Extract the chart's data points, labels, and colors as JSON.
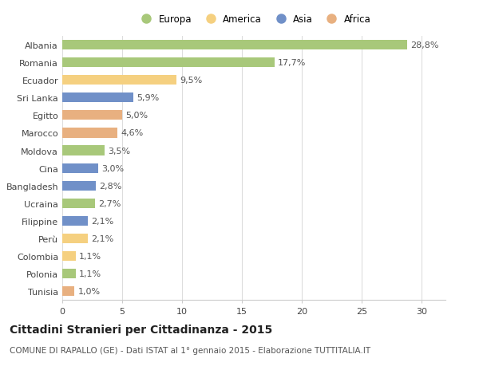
{
  "categories": [
    "Albania",
    "Romania",
    "Ecuador",
    "Sri Lanka",
    "Egitto",
    "Marocco",
    "Moldova",
    "Cina",
    "Bangladesh",
    "Ucraina",
    "Filippine",
    "Perù",
    "Colombia",
    "Polonia",
    "Tunisia"
  ],
  "values": [
    28.8,
    17.7,
    9.5,
    5.9,
    5.0,
    4.6,
    3.5,
    3.0,
    2.8,
    2.7,
    2.1,
    2.1,
    1.1,
    1.1,
    1.0
  ],
  "labels": [
    "28,8%",
    "17,7%",
    "9,5%",
    "5,9%",
    "5,0%",
    "4,6%",
    "3,5%",
    "3,0%",
    "2,8%",
    "2,7%",
    "2,1%",
    "2,1%",
    "1,1%",
    "1,1%",
    "1,0%"
  ],
  "continents": [
    "Europa",
    "Europa",
    "America",
    "Asia",
    "Africa",
    "Africa",
    "Europa",
    "Asia",
    "Asia",
    "Europa",
    "Asia",
    "America",
    "America",
    "Europa",
    "Africa"
  ],
  "colors": {
    "Europa": "#a8c87a",
    "America": "#f5d080",
    "Asia": "#7090c8",
    "Africa": "#e8b080"
  },
  "legend_order": [
    "Europa",
    "America",
    "Asia",
    "Africa"
  ],
  "title": "Cittadini Stranieri per Cittadinanza - 2015",
  "subtitle": "COMUNE DI RAPALLO (GE) - Dati ISTAT al 1° gennaio 2015 - Elaborazione TUTTITALIA.IT",
  "xlim": [
    0,
    32
  ],
  "xticks": [
    0,
    5,
    10,
    15,
    20,
    25,
    30
  ],
  "background_color": "#ffffff",
  "grid_color": "#dddddd",
  "bar_height": 0.55,
  "title_fontsize": 10,
  "subtitle_fontsize": 7.5,
  "label_fontsize": 8,
  "tick_fontsize": 8
}
